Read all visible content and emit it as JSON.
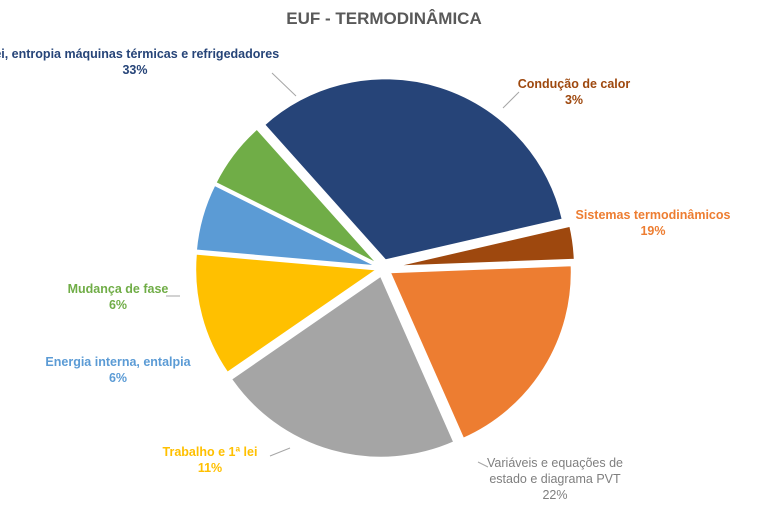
{
  "chart_data": {
    "type": "pie",
    "title": "EUF - TERMODINÂMICA",
    "slices": [
      {
        "label": "Condução  de calor",
        "value": 3,
        "value_label": "3%",
        "color": "#9E480E"
      },
      {
        "label": "Sistemas termodinâmicos",
        "value": 19,
        "value_label": "19%",
        "color": "#ED7D31"
      },
      {
        "label": "Variáveis e equações de estado e diagrama  PVT",
        "label_lines": [
          "Variáveis e equações de",
          "estado e diagrama  PVT"
        ],
        "value": 22,
        "value_label": "22%",
        "color": "#A5A5A5"
      },
      {
        "label": "Trabalho e 1ª lei",
        "value": 11,
        "value_label": "11%",
        "color": "#FFC000"
      },
      {
        "label": "Energia interna, entalpia",
        "value": 6,
        "value_label": "6%",
        "color": "#5B9BD5"
      },
      {
        "label": "Mudança de fase",
        "value": 6,
        "value_label": "6%",
        "color": "#70AD47"
      },
      {
        "label": "lei, entropia máquinas térmicas e refrigedadores",
        "value": 33,
        "value_label": "33%",
        "color": "#264478"
      }
    ],
    "exploded_slices": [
      "Condução  de calor",
      "Sistemas termodinâmicos",
      "Variáveis e equações de estado e diagrama  PVT",
      "Trabalho e 1ª lei",
      "Energia interna, entalpia",
      "Mudança de fase",
      "lei, entropia máquinas térmicas e refrigedadores"
    ],
    "legend": "none",
    "data_labels": "outside, category name and percentage"
  }
}
